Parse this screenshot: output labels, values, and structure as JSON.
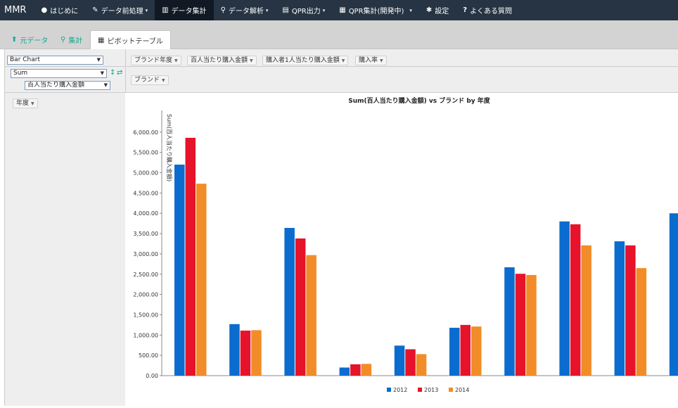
{
  "navbar": {
    "brand": "MMR",
    "items": [
      {
        "label": "はじめに",
        "icon": "●",
        "caret": ""
      },
      {
        "label": "データ前処理",
        "icon": "✎",
        "caret": "▾"
      },
      {
        "label": "データ集計",
        "icon": "▥",
        "caret": ""
      },
      {
        "label": "データ解析",
        "icon": "⚲",
        "caret": "▾"
      },
      {
        "label": "QPR出力",
        "icon": "▤",
        "caret": "▾"
      },
      {
        "label": "QPR集計(開発中)",
        "icon": "▦",
        "caret": "▾"
      },
      {
        "label": "設定",
        "icon": "✱",
        "caret": ""
      },
      {
        "label": "よくある質問",
        "icon": "?",
        "caret": ""
      }
    ]
  },
  "tabs": [
    {
      "label": "元データ",
      "icon": "⬆"
    },
    {
      "label": "集計",
      "icon": "⚲"
    },
    {
      "label": "ピボットテーブル",
      "icon": "▦"
    }
  ],
  "pivot": {
    "renderer": "Bar Chart",
    "aggregator": "Sum",
    "attribute": "百人当たり購入金額",
    "unused_attrs": [
      "ブランド年度",
      "百人当たり購入金額",
      "購入者1人当たり購入金額",
      "購入率"
    ],
    "col_attrs": [
      "ブランド"
    ],
    "row_attrs": [
      "年度"
    ]
  },
  "chart_data": {
    "type": "bar",
    "title": "Sum(百人当たり購入金額) vs ブランド by 年度",
    "xlabel": "",
    "ylabel": "Sum(百人当たり購入金額)",
    "ylim": [
      0,
      6500
    ],
    "yticks": [
      "0.00",
      "500.00",
      "1,000.00",
      "1,500.00",
      "2,000.00",
      "2,500.00",
      "3,000.00",
      "3,500.00",
      "4,000.00",
      "4,500.00",
      "5,000.00",
      "5,500.00",
      "6,000.00"
    ],
    "grid": false,
    "legend_position": "bottom",
    "series": [
      {
        "name": "2012",
        "color": "#0a6cce",
        "values": [
          5200,
          1270,
          3640,
          200,
          740,
          1180,
          2670,
          3800,
          3310,
          4000
        ]
      },
      {
        "name": "2013",
        "color": "#e6132a",
        "values": [
          5860,
          1110,
          3380,
          280,
          650,
          1250,
          2510,
          3730,
          3210,
          null
        ]
      },
      {
        "name": "2014",
        "color": "#f28c28",
        "values": [
          4730,
          1120,
          2970,
          290,
          530,
          1210,
          2480,
          3210,
          2650,
          null
        ]
      }
    ]
  }
}
